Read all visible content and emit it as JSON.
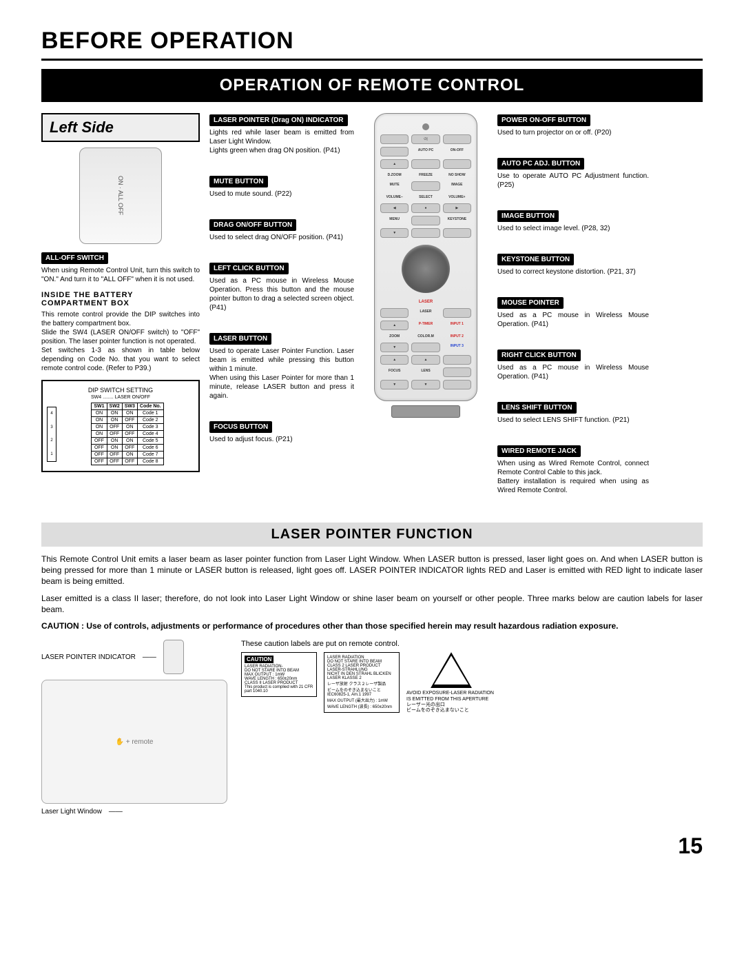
{
  "page_title": "BEFORE OPERATION",
  "section_banner": "OPERATION OF REMOTE CONTROL",
  "left_side_title": "Left Side",
  "switch_text": "ON · ALL OFF",
  "alloff": {
    "label": "ALL-OFF SWITCH",
    "desc": "When using Remote Control Unit, turn this switch to \"ON.\"  And turn it to \"ALL OFF\" when it is not used."
  },
  "battery_heading": "INSIDE THE BATTERY COMPARTMENT BOX",
  "battery_desc": "This remote control provide the DIP switches into the battery compartment box.\nSlide the SW4 (LASER ON/OFF switch) to \"OFF\" position. The laser pointer function is not operated.\nSet switches 1-3 as shown in table below depending on Code No. that you want to select remote control code. (Refer to P39.)",
  "dip": {
    "title": "DIP SWITCH SETTING",
    "sub": "SW4 ........ LASER ON/OFF",
    "headers": [
      "SW1",
      "SW2",
      "SW3",
      "Code No."
    ],
    "rows": [
      [
        "ON",
        "ON",
        "ON",
        "Code 1"
      ],
      [
        "ON",
        "ON",
        "OFF",
        "Code 2"
      ],
      [
        "ON",
        "OFF",
        "ON",
        "Code 3"
      ],
      [
        "ON",
        "OFF",
        "OFF",
        "Code 4"
      ],
      [
        "OFF",
        "ON",
        "ON",
        "Code 5"
      ],
      [
        "OFF",
        "ON",
        "OFF",
        "Code 6"
      ],
      [
        "OFF",
        "OFF",
        "ON",
        "Code 7"
      ],
      [
        "OFF",
        "OFF",
        "OFF",
        "Code 8"
      ]
    ],
    "side": [
      "1",
      "2",
      "3",
      "4"
    ],
    "side_label": "ON"
  },
  "mid": [
    {
      "label": "LASER POINTER (Drag ON) INDICATOR",
      "desc": "Lights red while laser beam is emitted from Laser Light Window.\nLights green when drag ON position. (P41)"
    },
    {
      "label": "MUTE BUTTON",
      "desc": "Used to mute sound. (P22)"
    },
    {
      "label": "DRAG ON/OFF BUTTON",
      "desc": "Used to select drag ON/OFF position. (P41)"
    },
    {
      "label": "LEFT CLICK BUTTON",
      "desc": "Used as a PC mouse in Wireless Mouse Operation. Press this button and the mouse pointer button to drag a selected screen object. (P41)"
    },
    {
      "label": "LASER BUTTON",
      "desc": "Used to operate Laser Pointer Function.  Laser beam is emitted while pressing this button within 1 minute.\nWhen using this Laser Pointer for more than 1 minute, release LASER button and press it again."
    },
    {
      "label": "FOCUS BUTTON",
      "desc": "Used to adjust focus. (P21)"
    }
  ],
  "right": [
    {
      "label": "POWER ON-OFF BUTTON",
      "desc": "Used to turn projector on or off. (P20)"
    },
    {
      "label": "AUTO PC ADJ. BUTTON",
      "desc": "Use to operate AUTO PC Adjustment function. (P25)"
    },
    {
      "label": "IMAGE BUTTON",
      "desc": "Used to select image level. (P28, 32)"
    },
    {
      "label": "KEYSTONE BUTTON",
      "desc": "Used to correct keystone distortion. (P21, 37)"
    },
    {
      "label": "MOUSE POINTER",
      "desc": "Used as a PC mouse in Wireless Mouse Operation. (P41)"
    },
    {
      "label": "RIGHT CLICK BUTTON",
      "desc": "Used as a PC mouse in Wireless Mouse Operation. (P41)"
    },
    {
      "label": "LENS SHIFT  BUTTON",
      "desc": "Used to select LENS SHIFT function.  (P21)"
    },
    {
      "label": "WIRED REMOTE JACK",
      "desc": "When using as Wired Remote Control, connect Remote Control Cable   to this jack.\nBattery installation is required when using as Wired Remote Control."
    }
  ],
  "remote_rows": [
    [
      "",
      "⏻|",
      ""
    ],
    [
      "",
      "AUTO PC",
      "ON-OFF"
    ],
    [
      "▲",
      "",
      ""
    ],
    [
      "D.ZOOM",
      "FREEZE",
      "NO SHOW"
    ],
    [
      "MUTE",
      "",
      "IMAGE"
    ],
    [
      "VOLUME–",
      "SELECT",
      "VOLUME+"
    ],
    [
      "◀",
      "●",
      "▶"
    ],
    [
      "MENU",
      "",
      "KEYSTONE"
    ],
    [
      "▼",
      "",
      ""
    ]
  ],
  "remote_lower": [
    [
      "",
      "LASER",
      ""
    ],
    [
      "▲",
      "P-TIMER",
      "INPUT 1"
    ],
    [
      "ZOOM",
      "COLOR.M",
      "INPUT 2"
    ],
    [
      "▼",
      "",
      "INPUT 3"
    ],
    [
      "▲",
      "▲",
      ""
    ],
    [
      "FOCUS",
      "LENS",
      ""
    ],
    [
      "▼",
      "▼",
      ""
    ]
  ],
  "remote_colors": {
    "input1": "#d02020",
    "input2": "#d02020",
    "input3": "#2040d0",
    "laser": "#d02020"
  },
  "laser_section_title": "LASER POINTER FUNCTION",
  "laser_p1": "This Remote Control Unit emits a laser beam as laser pointer function from Laser Light Window.  When LASER button is pressed, laser light goes on.  And when LASER button is being pressed for more than 1 minute or LASER button is released, light goes off.  LASER POINTER INDICATOR lights RED and Laser is emitted with RED light to indicate laser beam is being emitted.",
  "laser_p2": "Laser emitted is a class II laser; therefore, do not look into Laser Light Window or shine laser beam on yourself or other people.  Three marks below are caution labels for laser beam.",
  "laser_caution": "CAUTION : Use of controls, adjustments or performance of procedures other than those specified herein may result hazardous radiation exposure.",
  "indicator_labels": {
    "a": "LASER POINTER INDICATOR",
    "b": "Laser Light Window"
  },
  "caution_note": "These caution labels are put on remote control.",
  "cl1": {
    "hdr": "CAUTION",
    "lines": [
      "LASER RADIATION-",
      "DO NOT STARE INTO BEAM",
      "",
      "MAX OUTPUT : 1mW",
      "WAVE LENGTH : 650±20nm",
      "CLASS II LASER PRODUCT",
      "",
      "This product is complied with 21 CFR",
      "part  1040.10"
    ]
  },
  "cl2": {
    "lines": [
      "LASER RADIATION",
      "DO NOT STARE INTO BEAM",
      "CLASS 2 LASER PRODUCT",
      "LASER-STRAHLUNG",
      "NICHT IN DEN STRAHL BLICKEN",
      "LASER KLASSE 2",
      "レーザ放射 クラス２レーザ製品",
      "ビームをのぞき込まないこと",
      "IEC60825-1, Am.1 1997",
      "MAX OUTPUT (最大出力) : 1mW",
      "WAVE LENGTH (波長) : 650±20nm"
    ]
  },
  "tri_text": "AVOID EXPOSURE-LASER RADIATION IS EMITTED FROM THIS APERTURE\nレーザー光の出口\nビームをのぞき込まないこと",
  "page_number": "15"
}
